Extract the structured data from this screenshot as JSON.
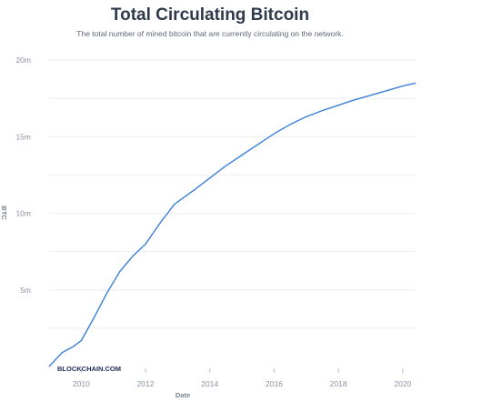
{
  "chart_data": {
    "type": "line",
    "title": "Total Circulating Bitcoin",
    "subtitle": "The total number of mined bitcoin that are currently circulating on the network.",
    "xlabel": "Date",
    "ylabel": "BTC",
    "x_ticks": [
      "2010",
      "2012",
      "2014",
      "2016",
      "2018",
      "2020"
    ],
    "y_ticks": [
      "5m",
      "10m",
      "15m",
      "20m"
    ],
    "xlim": [
      2009.0,
      2020.4
    ],
    "ylim": [
      0,
      20000000
    ],
    "grid": true,
    "watermark": "BLOCKCHAIN.COM",
    "line_color": "#3c7fd8",
    "series": [
      {
        "x": [
          2009.0,
          2009.4,
          2009.75,
          2010.0,
          2010.4,
          2010.8,
          2011.2,
          2011.6,
          2012.0,
          2012.5,
          2012.9,
          2013.5,
          2014.0,
          2014.5,
          2015.0,
          2015.5,
          2016.0,
          2016.5,
          2017.0,
          2017.5,
          2018.0,
          2018.5,
          2019.0,
          2019.5,
          2020.0,
          2020.4
        ],
        "y": [
          0,
          900000,
          1300000,
          1700000,
          3200000,
          4800000,
          6200000,
          7200000,
          8000000,
          9500000,
          10600000,
          11500000,
          12300000,
          13100000,
          13800000,
          14500000,
          15200000,
          15800000,
          16300000,
          16700000,
          17050000,
          17400000,
          17700000,
          18000000,
          18300000,
          18500000
        ]
      }
    ]
  }
}
